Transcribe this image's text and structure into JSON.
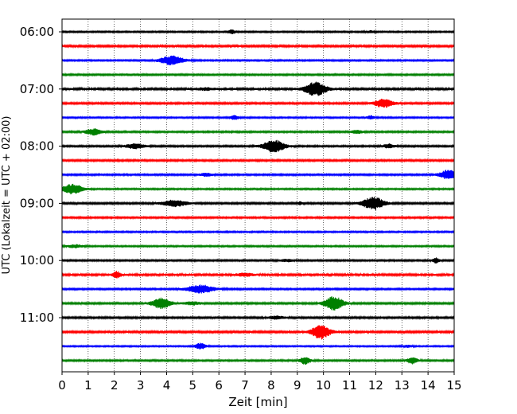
{
  "chart_data": {
    "type": "line",
    "title": "",
    "xlabel": "Zeit  [min]",
    "ylabel": "UTC (Lokalzeit = UTC + 02:00)",
    "xlim": [
      0,
      15
    ],
    "x_ticks": [
      "0",
      "1",
      "2",
      "3",
      "4",
      "5",
      "6",
      "7",
      "8",
      "9",
      "10",
      "11",
      "12",
      "13",
      "14",
      "15"
    ],
    "y_tick_labels": [
      "06:00",
      "07:00",
      "08:00",
      "09:00",
      "10:00",
      "11:00"
    ],
    "y_tick_trace_index": [
      0,
      4,
      8,
      12,
      16,
      20
    ],
    "grid": "vertical dotted at each minute",
    "trace_colors_cycle": [
      "#000000",
      "#ff0000",
      "#0000ff",
      "#008000"
    ],
    "traces": [
      {
        "start": "06:00",
        "color": "#000000",
        "noise": 0.22,
        "events": [
          {
            "t": 6.5,
            "a": 0.7,
            "w": 0.12
          },
          {
            "t": 11.8,
            "a": 0.3,
            "w": 0.15
          }
        ]
      },
      {
        "start": "06:15",
        "color": "#ff0000",
        "noise": 0.28,
        "events": []
      },
      {
        "start": "06:30",
        "color": "#0000ff",
        "noise": 0.22,
        "events": [
          {
            "t": 4.2,
            "a": 1.3,
            "w": 0.45
          }
        ]
      },
      {
        "start": "06:45",
        "color": "#008000",
        "noise": 0.24,
        "events": []
      },
      {
        "start": "07:00",
        "color": "#000000",
        "noise": 0.3,
        "events": [
          {
            "t": 9.7,
            "a": 2.0,
            "w": 0.4
          },
          {
            "t": 5.5,
            "a": 0.3,
            "w": 0.3
          }
        ]
      },
      {
        "start": "07:15",
        "color": "#ff0000",
        "noise": 0.26,
        "events": [
          {
            "t": 12.3,
            "a": 1.2,
            "w": 0.35
          }
        ]
      },
      {
        "start": "07:30",
        "color": "#0000ff",
        "noise": 0.22,
        "events": [
          {
            "t": 6.6,
            "a": 0.6,
            "w": 0.15
          },
          {
            "t": 11.8,
            "a": 0.5,
            "w": 0.15
          }
        ]
      },
      {
        "start": "07:45",
        "color": "#008000",
        "noise": 0.24,
        "events": [
          {
            "t": 1.2,
            "a": 0.9,
            "w": 0.3
          },
          {
            "t": 11.3,
            "a": 0.5,
            "w": 0.2
          }
        ]
      },
      {
        "start": "08:00",
        "color": "#000000",
        "noise": 0.24,
        "events": [
          {
            "t": 8.1,
            "a": 1.8,
            "w": 0.4
          },
          {
            "t": 2.8,
            "a": 0.7,
            "w": 0.35
          },
          {
            "t": 12.5,
            "a": 0.6,
            "w": 0.2
          }
        ]
      },
      {
        "start": "08:15",
        "color": "#ff0000",
        "noise": 0.26,
        "events": []
      },
      {
        "start": "08:30",
        "color": "#0000ff",
        "noise": 0.24,
        "events": [
          {
            "t": 14.8,
            "a": 1.4,
            "w": 0.35
          },
          {
            "t": 5.5,
            "a": 0.4,
            "w": 0.25
          }
        ]
      },
      {
        "start": "08:45",
        "color": "#008000",
        "noise": 0.22,
        "events": [
          {
            "t": 0.4,
            "a": 1.4,
            "w": 0.4
          }
        ]
      },
      {
        "start": "09:00",
        "color": "#000000",
        "noise": 0.26,
        "events": [
          {
            "t": 11.9,
            "a": 1.9,
            "w": 0.4
          },
          {
            "t": 4.3,
            "a": 0.9,
            "w": 0.45
          },
          {
            "t": 9.1,
            "a": 0.4,
            "w": 0.1
          }
        ]
      },
      {
        "start": "09:15",
        "color": "#ff0000",
        "noise": 0.24,
        "events": []
      },
      {
        "start": "09:30",
        "color": "#0000ff",
        "noise": 0.22,
        "events": []
      },
      {
        "start": "09:45",
        "color": "#008000",
        "noise": 0.22,
        "events": [
          {
            "t": 0.5,
            "a": 0.4,
            "w": 0.3
          }
        ]
      },
      {
        "start": "10:00",
        "color": "#000000",
        "noise": 0.24,
        "events": [
          {
            "t": 14.3,
            "a": 0.8,
            "w": 0.12
          },
          {
            "t": 8.6,
            "a": 0.3,
            "w": 0.25
          }
        ]
      },
      {
        "start": "10:15",
        "color": "#ff0000",
        "noise": 0.3,
        "events": [
          {
            "t": 2.1,
            "a": 0.9,
            "w": 0.15
          },
          {
            "t": 7.0,
            "a": 0.4,
            "w": 0.3
          }
        ]
      },
      {
        "start": "10:30",
        "color": "#0000ff",
        "noise": 0.24,
        "events": [
          {
            "t": 5.3,
            "a": 1.2,
            "w": 0.5
          }
        ]
      },
      {
        "start": "10:45",
        "color": "#008000",
        "noise": 0.26,
        "events": [
          {
            "t": 3.8,
            "a": 1.6,
            "w": 0.35
          },
          {
            "t": 10.4,
            "a": 2.0,
            "w": 0.35
          },
          {
            "t": 5.0,
            "a": 0.4,
            "w": 0.3
          }
        ]
      },
      {
        "start": "11:00",
        "color": "#000000",
        "noise": 0.26,
        "events": [
          {
            "t": 8.2,
            "a": 0.4,
            "w": 0.3
          }
        ]
      },
      {
        "start": "11:15",
        "color": "#ff0000",
        "noise": 0.28,
        "events": [
          {
            "t": 9.9,
            "a": 2.0,
            "w": 0.35
          }
        ]
      },
      {
        "start": "11:30",
        "color": "#0000ff",
        "noise": 0.2,
        "events": [
          {
            "t": 5.3,
            "a": 0.9,
            "w": 0.2
          },
          {
            "t": 13.2,
            "a": 0.3,
            "w": 0.2
          }
        ]
      },
      {
        "start": "11:45",
        "color": "#008000",
        "noise": 0.24,
        "events": [
          {
            "t": 9.3,
            "a": 1.0,
            "w": 0.2
          },
          {
            "t": 13.4,
            "a": 0.9,
            "w": 0.2
          }
        ]
      }
    ]
  }
}
